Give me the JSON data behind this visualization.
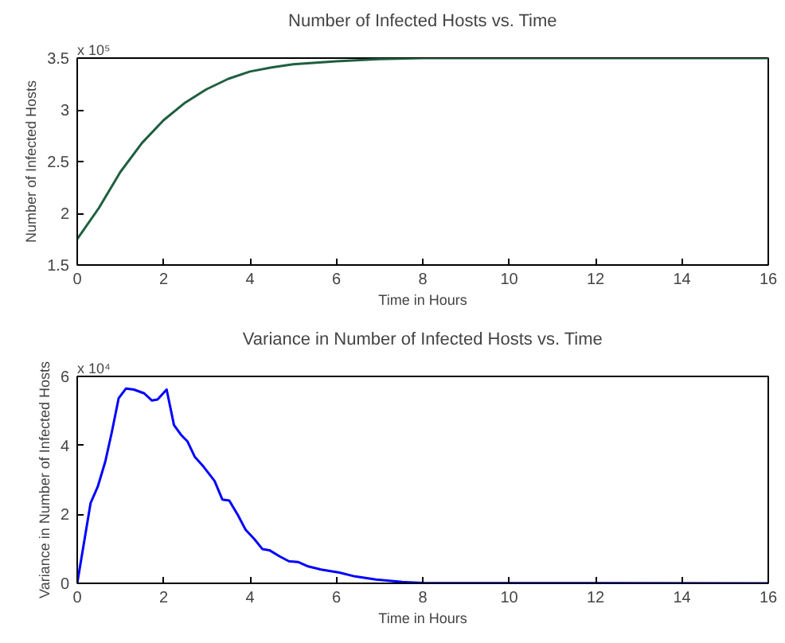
{
  "chart_data": [
    {
      "type": "line",
      "title": "Number of Infected Hosts vs. Time",
      "xlabel": "Time in Hours",
      "ylabel": "Number of Infected Hosts",
      "annotations": [
        "x 10⁵"
      ],
      "grid": false,
      "xlim": [
        0,
        16
      ],
      "xticks": [
        0,
        2,
        4,
        6,
        8,
        10,
        12,
        14,
        16
      ],
      "ylim": [
        1.5,
        3.5
      ],
      "yticks": [
        1.5,
        2,
        2.5,
        3,
        3.5
      ],
      "series": [
        {
          "color": "#1f5f3f",
          "x": [
            0,
            0.5,
            1,
            1.5,
            2,
            2.5,
            3,
            3.5,
            4,
            4.5,
            5,
            6,
            7,
            8,
            10,
            12,
            14,
            16
          ],
          "values": [
            1.75,
            2.05,
            2.4,
            2.68,
            2.9,
            3.07,
            3.2,
            3.3,
            3.37,
            3.41,
            3.44,
            3.47,
            3.49,
            3.5,
            3.5,
            3.5,
            3.5,
            3.5
          ]
        }
      ]
    },
    {
      "type": "line",
      "title": "Variance in Number of Infected Hosts vs. Time",
      "xlabel": "Time in Hours",
      "ylabel": "Variance in Number of Infected Hosts",
      "annotations": [
        "x 10⁴"
      ],
      "grid": false,
      "xlim": [
        0,
        16
      ],
      "xticks": [
        0,
        2,
        4,
        6,
        8,
        10,
        12,
        14,
        16
      ],
      "ylim": [
        0,
        6
      ],
      "yticks": [
        0,
        2,
        4,
        6
      ],
      "series": [
        {
          "color": "#0000ff",
          "x": [
            0,
            0.31,
            0.48,
            0.65,
            0.8,
            0.96,
            1.13,
            1.31,
            1.55,
            1.73,
            1.86,
            2.07,
            2.24,
            2.4,
            2.55,
            2.72,
            2.92,
            3.18,
            3.36,
            3.52,
            3.72,
            3.9,
            4.11,
            4.29,
            4.45,
            4.69,
            4.9,
            5.11,
            5.35,
            5.65,
            6.07,
            6.43,
            6.92,
            7.52,
            8,
            16
          ],
          "values": [
            0,
            2.33,
            2.82,
            3.53,
            4.38,
            5.37,
            5.65,
            5.62,
            5.51,
            5.3,
            5.33,
            5.62,
            4.59,
            4.31,
            4.12,
            3.67,
            3.39,
            2.97,
            2.43,
            2.4,
            1.98,
            1.55,
            1.27,
            0.99,
            0.96,
            0.78,
            0.64,
            0.62,
            0.49,
            0.4,
            0.31,
            0.2,
            0.11,
            0.04,
            0.01,
            0
          ]
        }
      ]
    }
  ]
}
